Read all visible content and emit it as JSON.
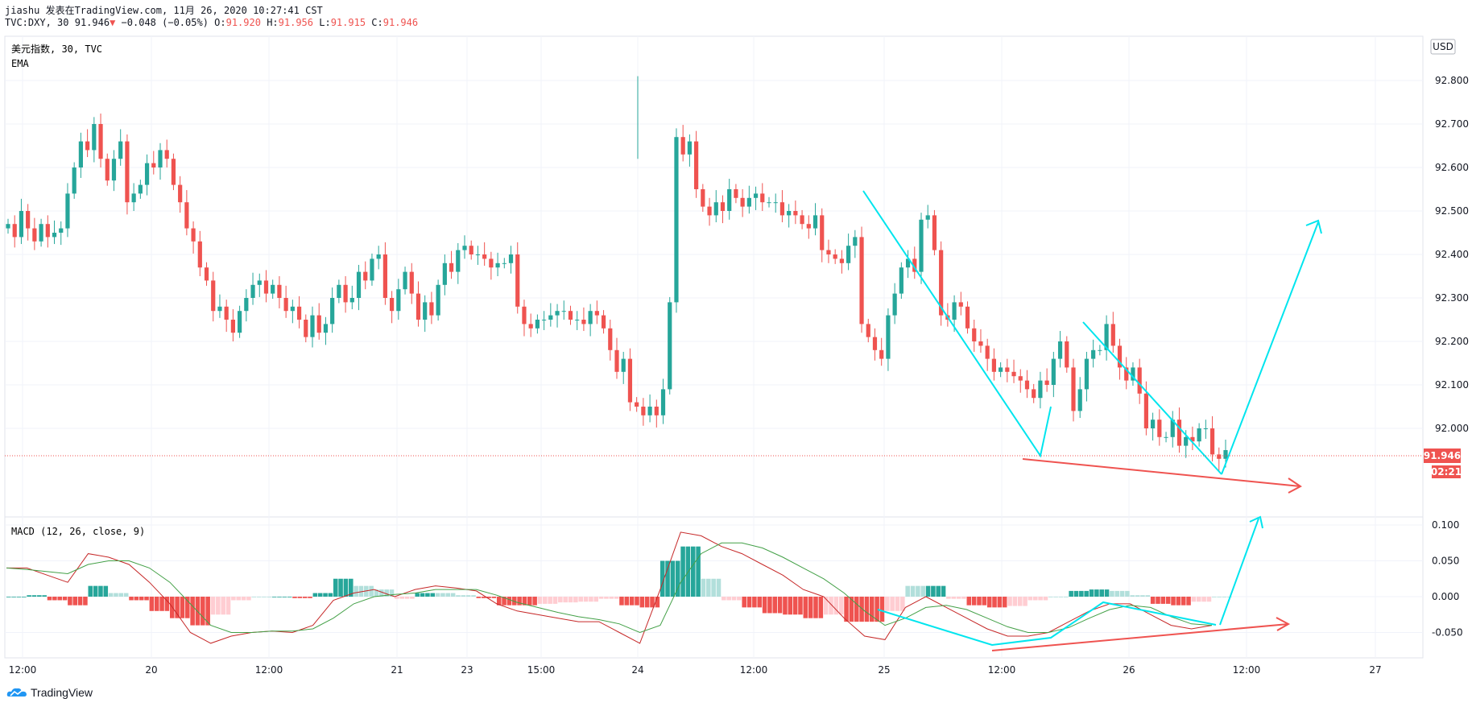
{
  "header": {
    "line1": "jiashu 发表在TradingView.com, 11月 26, 2020 10:27:41 CST",
    "symbol": "TVC:DXY, 30",
    "last": "91.946",
    "change_arrow": "▼",
    "change": "−0.048 (−0.05%)",
    "o_label": "O:",
    "o": "91.920",
    "h_label": "H:",
    "h": "91.956",
    "l_label": "L:",
    "l": "91.915",
    "c_label": "C:",
    "c": "91.946"
  },
  "pane_labels": {
    "main": "美元指数, 30, TVC",
    "ema": "EMA",
    "macd": "MACD (12, 26, close, 9)",
    "currency": "USD",
    "price_tag": "91.946",
    "countdown": "02:21"
  },
  "footer": {
    "brand": "TradingView"
  },
  "colors": {
    "up": "#26a69a",
    "down": "#ef5350",
    "cyan": "#00e5ee",
    "macd_line": "#c62828",
    "signal_line": "#43a047",
    "hist_pos": "#26a69a",
    "hist_pos_fade": "#b2dfdb",
    "hist_neg": "#ef5350",
    "hist_neg_fade": "#ffcdd2"
  },
  "chart_data": [
    {
      "type": "candlestick",
      "title": "美元指数, 30, TVC",
      "ylim": [
        91.9,
        92.9
      ],
      "yticks": [
        92.0,
        92.1,
        92.2,
        92.3,
        92.4,
        92.5,
        92.6,
        92.7,
        92.8
      ],
      "xticks": [
        "12:00",
        "20",
        "12:00",
        "21",
        "23",
        "15:00",
        "24",
        "12:00",
        "25",
        "12:00",
        "26",
        "12:00",
        "27"
      ],
      "last_price": 91.946,
      "approx_close_path": [
        92.47,
        92.44,
        92.5,
        92.46,
        92.43,
        92.47,
        92.44,
        92.45,
        92.46,
        92.54,
        92.6,
        92.66,
        92.64,
        92.7,
        92.62,
        92.57,
        92.62,
        92.66,
        92.52,
        92.54,
        92.56,
        92.61,
        92.6,
        92.64,
        92.62,
        92.56,
        92.52,
        92.46,
        92.43,
        92.37,
        92.34,
        92.27,
        92.28,
        92.25,
        92.22,
        92.27,
        92.3,
        92.33,
        92.34,
        92.31,
        92.33,
        92.3,
        92.27,
        92.28,
        92.25,
        92.21,
        92.26,
        92.22,
        92.24,
        92.3,
        92.33,
        92.29,
        92.3,
        92.36,
        92.34,
        92.39,
        92.4,
        92.3,
        92.27,
        92.32,
        92.36,
        92.31,
        92.25,
        92.29,
        92.26,
        92.33,
        92.38,
        92.36,
        92.41,
        92.42,
        92.4,
        92.4,
        92.39,
        92.37,
        92.38,
        92.38,
        92.4,
        92.28,
        92.24,
        92.23,
        92.25,
        92.25,
        92.26,
        92.27,
        92.27,
        92.25,
        92.25,
        92.24,
        92.27,
        92.26,
        92.23,
        92.18,
        92.13,
        92.16,
        92.06,
        92.05,
        92.03,
        92.05,
        92.03,
        92.09,
        92.29,
        92.67,
        92.63,
        92.66,
        92.55,
        92.51,
        92.49,
        92.52,
        92.5,
        92.55,
        92.53,
        92.51,
        92.53,
        92.54,
        92.52,
        92.52,
        92.52,
        92.49,
        92.5,
        92.49,
        92.47,
        92.46,
        92.49,
        92.41,
        92.4,
        92.39,
        92.38,
        92.42,
        92.44,
        92.24,
        92.21,
        92.18,
        92.16,
        92.26,
        92.31,
        92.37,
        92.39,
        92.36,
        92.48,
        92.49,
        92.41,
        92.26,
        92.25,
        92.29,
        92.28,
        92.23,
        92.2,
        92.19,
        92.16,
        92.13,
        92.14,
        92.13,
        92.12,
        92.11,
        92.09,
        92.07,
        92.11,
        92.1,
        92.16,
        92.2,
        92.14,
        92.04,
        92.09,
        92.16,
        92.18,
        92.18,
        92.24,
        92.19,
        92.14,
        92.11,
        92.14,
        92.08,
        92.0,
        92.02,
        91.98,
        91.98,
        92.02,
        91.96,
        91.98,
        91.97,
        92.0,
        92.0,
        91.94,
        91.93,
        91.95
      ]
    },
    {
      "type": "line",
      "title": "MACD (12, 26, close, 9)",
      "ylim": [
        -0.085,
        0.11
      ],
      "yticks": [
        -0.05,
        0.0,
        0.05,
        0.1
      ],
      "series": [
        {
          "name": "MACD",
          "values": [
            0.04,
            0.04,
            0.03,
            0.02,
            0.06,
            0.055,
            0.045,
            0.02,
            -0.01,
            -0.05,
            -0.065,
            -0.055,
            -0.05,
            -0.048,
            -0.05,
            -0.04,
            -0.005,
            0.005,
            0.01,
            0.0,
            0.01,
            0.015,
            0.012,
            0.008,
            -0.01,
            -0.02,
            -0.025,
            -0.03,
            -0.035,
            -0.035,
            -0.05,
            -0.065,
            0.01,
            0.09,
            0.085,
            0.07,
            0.06,
            0.045,
            0.03,
            0.01,
            0.0,
            -0.03,
            -0.055,
            -0.06,
            -0.015,
            0.0,
            -0.015,
            -0.03,
            -0.045,
            -0.055,
            -0.055,
            -0.05,
            -0.035,
            -0.02,
            -0.01,
            -0.01,
            -0.025,
            -0.04,
            -0.045,
            -0.04
          ]
        },
        {
          "name": "Signal",
          "values": [
            0.04,
            0.038,
            0.035,
            0.032,
            0.045,
            0.05,
            0.05,
            0.04,
            0.02,
            -0.01,
            -0.04,
            -0.05,
            -0.05,
            -0.048,
            -0.048,
            -0.045,
            -0.03,
            -0.01,
            0.0,
            0.003,
            0.005,
            0.01,
            0.01,
            0.01,
            0.002,
            -0.008,
            -0.015,
            -0.022,
            -0.028,
            -0.032,
            -0.038,
            -0.05,
            -0.04,
            0.02,
            0.06,
            0.075,
            0.075,
            0.068,
            0.055,
            0.04,
            0.025,
            0.005,
            -0.02,
            -0.04,
            -0.03,
            -0.015,
            -0.012,
            -0.018,
            -0.03,
            -0.042,
            -0.05,
            -0.05,
            -0.043,
            -0.03,
            -0.018,
            -0.012,
            -0.015,
            -0.028,
            -0.038,
            -0.04
          ]
        }
      ]
    }
  ]
}
